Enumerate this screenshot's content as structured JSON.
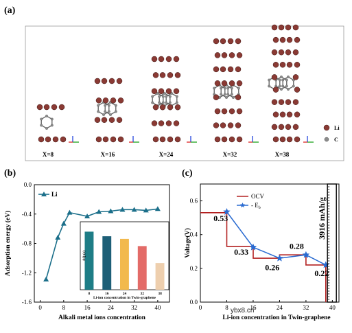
{
  "panel_a": {
    "letter": "(a)",
    "structures": [
      {
        "label": "X=8",
        "li_count": 8
      },
      {
        "label": "X=16",
        "li_count": 16
      },
      {
        "label": "X=24",
        "li_count": 24
      },
      {
        "label": "X=32",
        "li_count": 32
      },
      {
        "label": "X=38",
        "li_count": 38
      }
    ],
    "legend": [
      {
        "label": "Li",
        "color": "#8a3a34"
      },
      {
        "label": "C",
        "color": "#8c8c8c"
      }
    ]
  },
  "panel_b": {
    "letter": "(b)",
    "legend": "Li",
    "inset_ylabel": "ΔQ (e)",
    "inset_xlabel": "Li-ion concentration in Twin-graphene"
  },
  "panel_c": {
    "letter": "(c)",
    "capacity_label": "3916 mAh/g",
    "legend_ocv": "OCV",
    "legend_eb": "- E",
    "legend_eb_sub": "b"
  },
  "watermark": "ybx8.cn",
  "chart_data": [
    {
      "type": "line",
      "panel": "b",
      "xlabel": "Alkali metal ions concentration",
      "ylabel": "Adsorption energy (eV)",
      "xlim": [
        -2,
        44
      ],
      "ylim": [
        -1.6,
        0.0
      ],
      "xticks": [
        0,
        8,
        16,
        24,
        32,
        40
      ],
      "yticks": [
        -1.6,
        -1.2,
        -0.8,
        -0.4,
        0.0
      ],
      "series": [
        {
          "name": "Li",
          "color": "#1b6f8a",
          "x": [
            2,
            6,
            8,
            10,
            16,
            20,
            24,
            28,
            32,
            36,
            40
          ],
          "y": [
            -1.29,
            -0.72,
            -0.53,
            -0.38,
            -0.43,
            -0.37,
            -0.36,
            -0.34,
            -0.34,
            -0.35,
            -0.33
          ]
        }
      ]
    },
    {
      "type": "bar",
      "panel": "b-inset",
      "xlabel": "Li-ion concentration in Twin-graphene",
      "ylabel": "ΔQ (e)",
      "categories": [
        "8",
        "16",
        "24",
        "32",
        "38"
      ],
      "values": [
        0.89,
        0.82,
        0.78,
        0.67,
        0.41
      ],
      "colors": [
        "#1e7d86",
        "#1d5f77",
        "#f2b94d",
        "#e36b68",
        "#eecfae"
      ],
      "ylim": [
        0,
        1.0
      ]
    },
    {
      "type": "line",
      "panel": "c",
      "xlabel": "Li-ion concentration in Twin-graphene",
      "ylabel": "Voltage(V)",
      "xlim": [
        0,
        42
      ],
      "ylim": [
        0,
        0.7
      ],
      "xticks": [
        0,
        8,
        16,
        24,
        32,
        40
      ],
      "yticks": [
        0.0,
        0.2,
        0.4,
        0.6
      ],
      "ocv_steps": [
        {
          "x0": 0,
          "x1": 8,
          "v": 0.53
        },
        {
          "x0": 8,
          "x1": 16,
          "v": 0.33
        },
        {
          "x0": 16,
          "x1": 24,
          "v": 0.26
        },
        {
          "x0": 24,
          "x1": 32,
          "v": 0.28
        },
        {
          "x0": 32,
          "x1": 38,
          "v": 0.22
        }
      ],
      "series": [
        {
          "name": "OCV",
          "color": "#b32020"
        },
        {
          "name": "- Eb",
          "color": "#2a6bd1",
          "x": [
            8,
            16,
            24,
            32,
            38
          ],
          "y": [
            0.535,
            0.325,
            0.26,
            0.28,
            0.22
          ]
        }
      ],
      "step_labels": [
        "0.53",
        "0.33",
        "0.26",
        "0.28",
        "0.22"
      ]
    }
  ]
}
